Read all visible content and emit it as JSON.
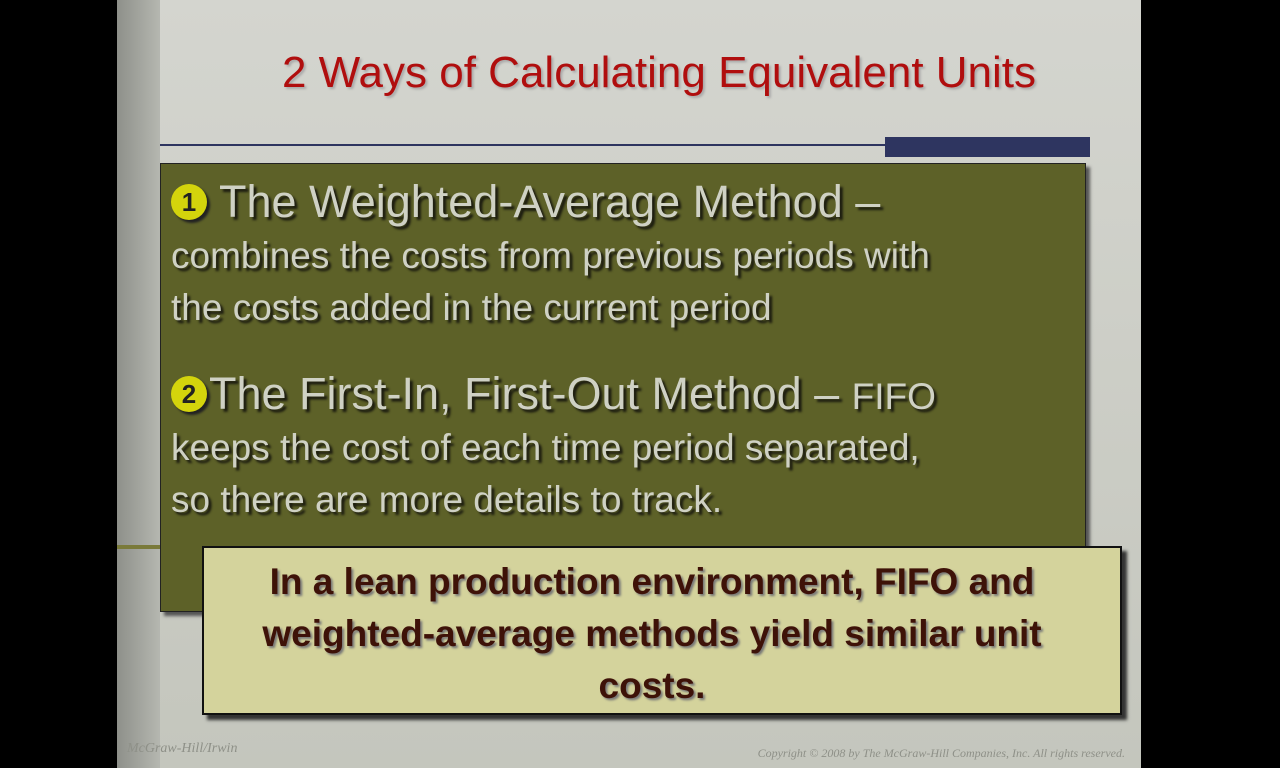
{
  "title": "2 Ways of Calculating Equivalent Units",
  "methods": [
    {
      "number": "1",
      "heading": "The Weighted-Average Method –",
      "line1": "combines the costs from previous periods with",
      "line2": "the costs added in the current period"
    },
    {
      "number": "2",
      "heading": "The First-In, First-Out Method – ",
      "heading_suffix": "FIFO",
      "line1": "keeps the cost of each time period separated,",
      "line2": "so there are more details to track."
    }
  ],
  "callout": "In a lean production environment, FIFO and weighted-average methods yield similar unit costs.",
  "footer": {
    "publisher": "McGraw-Hill/Irwin",
    "copyright": "Copyright © 2008 by The McGraw-Hill Companies, Inc. All rights reserved."
  },
  "colors": {
    "title": "#b00e0e",
    "panel": "#5d6128",
    "callout": "#d4d39c",
    "bullet": "#d4d40c",
    "accent_bar": "#2e3560"
  }
}
